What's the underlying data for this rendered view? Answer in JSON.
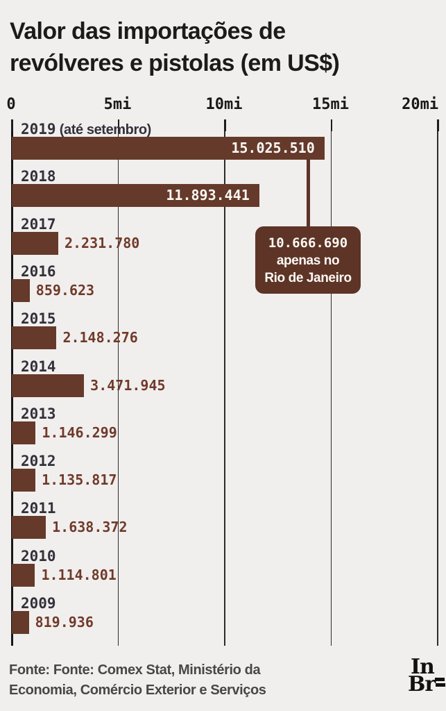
{
  "title": {
    "line1": "Valor das importações de",
    "line2": "revólveres e pistolas (em US$)"
  },
  "chart_data": {
    "type": "bar",
    "orientation": "horizontal",
    "unit": "US$",
    "title": "Valor das importações de revólveres e pistolas (em US$)",
    "xlim": [
      0,
      20000000
    ],
    "tick_labels": [
      "0",
      "5mi",
      "10mi",
      "15mi",
      "20mi"
    ],
    "grid": "on",
    "rows": [
      {
        "year": "2019",
        "suffix": " (até setembro)",
        "value": 15025510,
        "value_label": "15.025.510",
        "label_inside": true
      },
      {
        "year": "2018",
        "suffix": "",
        "value": 11893441,
        "value_label": "11.893.441",
        "label_inside": true
      },
      {
        "year": "2017",
        "suffix": "",
        "value": 2231780,
        "value_label": "2.231.780",
        "label_inside": false
      },
      {
        "year": "2016",
        "suffix": "",
        "value": 859623,
        "value_label": "859.623",
        "label_inside": false
      },
      {
        "year": "2015",
        "suffix": "",
        "value": 2148276,
        "value_label": "2.148.276",
        "label_inside": false
      },
      {
        "year": "2014",
        "suffix": "",
        "value": 3471945,
        "value_label": "3.471.945",
        "label_inside": false
      },
      {
        "year": "2013",
        "suffix": "",
        "value": 1146299,
        "value_label": "1.146.299",
        "label_inside": false
      },
      {
        "year": "2012",
        "suffix": "",
        "value": 1135817,
        "value_label": "1.135.817",
        "label_inside": false
      },
      {
        "year": "2011",
        "suffix": "",
        "value": 1638372,
        "value_label": "1.638.372",
        "label_inside": false
      },
      {
        "year": "2010",
        "suffix": "",
        "value": 1114801,
        "value_label": "1.114.801",
        "label_inside": false
      },
      {
        "year": "2009",
        "suffix": "",
        "value": 819936,
        "value_label": "819.936",
        "label_inside": false
      }
    ],
    "annotation": {
      "value_line": "10.666.690",
      "text_line1": "apenas no",
      "text_line2": "Rio de Janeiro",
      "applies_to": "2019"
    }
  },
  "footer": {
    "line1": "Fonte: Fonte: Comex Stat, Ministério da",
    "line2": "Economia, Comércio Exterior e Serviços",
    "logo_line1": "In",
    "logo_line2": "Br"
  },
  "colors": {
    "background": "#f1efed",
    "bar": "#653a2b",
    "callout": "#5d3426",
    "value_text": "#703a2b",
    "value_text_inside": "#faf7f3",
    "year_text": "#32313b",
    "title_text": "#1b1b1b",
    "footer_text": "#474747",
    "gridline": "#2b2b2b"
  }
}
